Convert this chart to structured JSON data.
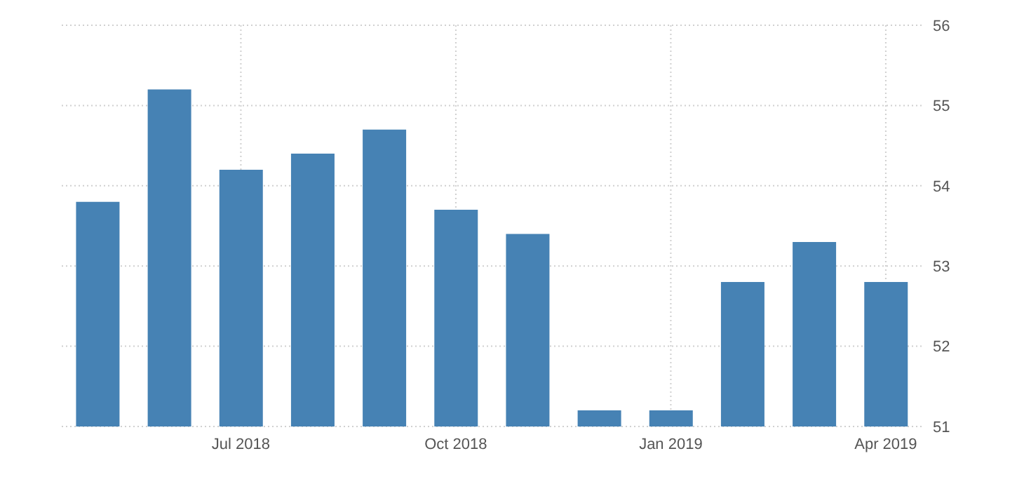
{
  "chart_data": {
    "type": "bar",
    "categories": [
      null,
      null,
      "Jul 2018",
      null,
      null,
      "Oct 2018",
      null,
      null,
      "Jan 2019",
      null,
      null,
      "Apr 2019"
    ],
    "values": [
      53.8,
      55.2,
      54.2,
      54.4,
      54.7,
      53.7,
      53.4,
      51.2,
      51.2,
      52.8,
      53.3,
      52.8
    ],
    "color": "#4682b4",
    "ylim": [
      51,
      56
    ],
    "yticks": [
      51,
      52,
      53,
      54,
      55,
      56
    ],
    "grid": true
  }
}
